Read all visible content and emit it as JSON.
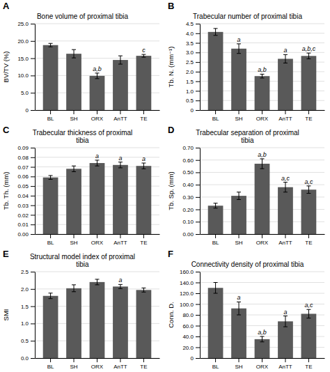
{
  "chart_data": [
    {
      "type": "bar",
      "label": "A",
      "title": "Bone volume of proximal tibia",
      "ylabel": "BV/TV (%)",
      "categories": [
        "BL",
        "SH",
        "ORX",
        "AnTT",
        "TE"
      ],
      "values": [
        18.8,
        16.3,
        9.9,
        14.5,
        15.7
      ],
      "errors": [
        0.5,
        1.2,
        0.8,
        1.2,
        0.4
      ],
      "annotations": [
        null,
        null,
        "a,b",
        null,
        "c"
      ],
      "color": "#595959",
      "ylim": [
        0,
        25
      ],
      "yticks": [
        0,
        {
          "value": 5.0,
          "label": "5.0"
        },
        {
          "value": 10.0,
          "label": "10.0"
        },
        {
          "value": 15.0,
          "label": "15.0"
        },
        {
          "value": 20.0,
          "label": "20.0"
        },
        {
          "value": 25.0,
          "label": "25.0"
        }
      ],
      "grid": true
    },
    {
      "type": "bar",
      "label": "B",
      "title": "Trabecular number of proximal tibia",
      "ylabel": "Tb. N. (mm⁻¹)",
      "categories": [
        "BL",
        "SH",
        "ORX",
        "AnTT",
        "TE"
      ],
      "values": [
        4.07,
        3.2,
        1.77,
        2.67,
        2.82
      ],
      "errors": [
        0.18,
        0.25,
        0.1,
        0.22,
        0.15
      ],
      "annotations": [
        null,
        "a",
        "a,b",
        "a",
        "a,b,c"
      ],
      "color": "#595959",
      "ylim": [
        0,
        4.5
      ],
      "yticks": [
        0,
        0.5,
        {
          "value": 1.0,
          "label": "1.0"
        },
        1.5,
        {
          "value": 2.0,
          "label": "2.0"
        },
        2.5,
        {
          "value": 3.0,
          "label": "3.0"
        },
        3.5,
        {
          "value": 4.0,
          "label": "4.0"
        },
        4.5
      ],
      "grid": true
    },
    {
      "type": "bar",
      "label": "C",
      "title": "Trabecular thickness of proximal\ntibia",
      "ylabel": "Tb. Th. (mm)",
      "categories": [
        "BL",
        "SH",
        "ORX",
        "AnTT",
        "TE"
      ],
      "values": [
        0.059,
        0.068,
        0.074,
        0.072,
        0.071
      ],
      "errors": [
        0.002,
        0.003,
        0.003,
        0.003,
        0.003
      ],
      "annotations": [
        null,
        null,
        "a",
        "a",
        "a"
      ],
      "color": "#595959",
      "ylim": [
        0,
        0.09
      ],
      "yticks": [
        {
          "value": 0.0,
          "label": "0.00"
        },
        0.01,
        0.02,
        0.03,
        0.04,
        0.05,
        0.06,
        0.07,
        0.08,
        0.09
      ],
      "grid": true
    },
    {
      "type": "bar",
      "label": "D",
      "title": "Trabecular separation of proximal\ntibia",
      "ylabel": "Tb. Sp. (mm)",
      "categories": [
        "BL",
        "SH",
        "ORX",
        "AnTT",
        "TE"
      ],
      "values": [
        0.23,
        0.31,
        0.57,
        0.38,
        0.36
      ],
      "errors": [
        0.02,
        0.03,
        0.04,
        0.04,
        0.03
      ],
      "annotations": [
        null,
        null,
        "a,b",
        "a,c",
        "a,c"
      ],
      "color": "#595959",
      "ylim": [
        0,
        0.7
      ],
      "yticks": [
        {
          "value": 0.0,
          "label": "0.00"
        },
        {
          "value": 0.1,
          "label": "0.10"
        },
        {
          "value": 0.2,
          "label": "0.20"
        },
        {
          "value": 0.3,
          "label": "0.30"
        },
        {
          "value": 0.4,
          "label": "0.40"
        },
        {
          "value": 0.5,
          "label": "0.50"
        },
        {
          "value": 0.6,
          "label": "0.60"
        },
        {
          "value": 0.7,
          "label": "0.70"
        }
      ],
      "grid": true
    },
    {
      "type": "bar",
      "label": "E",
      "title": "Structural model index of proximal\ntibia",
      "ylabel": "SMI",
      "categories": [
        "BL",
        "SH",
        "ORX",
        "AnTT",
        "TE"
      ],
      "values": [
        1.8,
        2.02,
        2.2,
        2.07,
        1.97
      ],
      "errors": [
        0.08,
        0.1,
        0.08,
        0.06,
        0.06
      ],
      "annotations": [
        null,
        null,
        null,
        "a",
        null
      ],
      "color": "#595959",
      "ylim": [
        0,
        2.5
      ],
      "yticks": [
        {
          "value": 0.0,
          "label": "0.0"
        },
        0.5,
        {
          "value": 1.0,
          "label": "1.0"
        },
        1.5,
        {
          "value": 2.0,
          "label": "2.0"
        },
        2.5
      ],
      "grid": true
    },
    {
      "type": "bar",
      "label": "F",
      "title": "Connectivity density of proximal tibia",
      "ylabel": "Conn. D.",
      "categories": [
        "BL",
        "SH",
        "ORX",
        "AnTT",
        "TE"
      ],
      "values": [
        130,
        92,
        35,
        68,
        82
      ],
      "errors": [
        10,
        12,
        5,
        10,
        8
      ],
      "annotations": [
        null,
        "a",
        "a,b",
        "a",
        "a,c"
      ],
      "color": "#595959",
      "ylim": [
        0,
        160
      ],
      "yticks": [
        0,
        {
          "value": 20,
          "label": "20.0"
        },
        {
          "value": 40,
          "label": "40.0"
        },
        {
          "value": 60,
          "label": "60.0"
        },
        {
          "value": 80,
          "label": "80.0"
        },
        {
          "value": 100,
          "label": "100.0"
        },
        {
          "value": 120,
          "label": "120.0"
        },
        {
          "value": 140,
          "label": "140.0"
        },
        {
          "value": 160,
          "label": "160.0"
        }
      ],
      "grid": true
    }
  ]
}
